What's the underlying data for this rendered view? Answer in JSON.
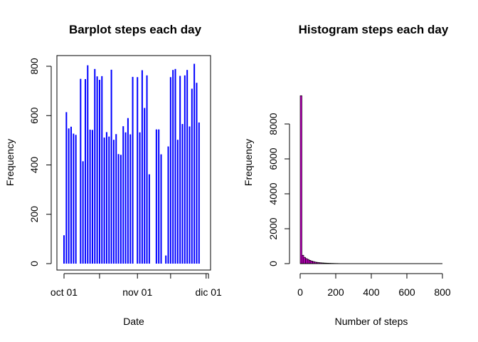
{
  "chart_data": [
    {
      "type": "bar",
      "title": "Barplot steps each day",
      "xlabel": "Date",
      "ylabel": "Frequency",
      "ylim": [
        0,
        860
      ],
      "yticks": [
        0,
        200,
        400,
        600,
        800
      ],
      "xticks": [
        "oct 01",
        "nov 01",
        "dic 01"
      ],
      "bar_color": "#0000ff",
      "x": [
        "2012-10-01",
        "2012-10-02",
        "2012-10-03",
        "2012-10-04",
        "2012-10-05",
        "2012-10-06",
        "2012-10-07",
        "2012-10-08",
        "2012-10-09",
        "2012-10-10",
        "2012-10-11",
        "2012-10-12",
        "2012-10-13",
        "2012-10-14",
        "2012-10-15",
        "2012-10-16",
        "2012-10-17",
        "2012-10-18",
        "2012-10-19",
        "2012-10-20",
        "2012-10-21",
        "2012-10-22",
        "2012-10-23",
        "2012-10-24",
        "2012-10-25",
        "2012-10-26",
        "2012-10-27",
        "2012-10-28",
        "2012-10-29",
        "2012-10-30",
        "2012-10-31",
        "2012-11-01",
        "2012-11-02",
        "2012-11-03",
        "2012-11-04",
        "2012-11-05",
        "2012-11-06",
        "2012-11-07",
        "2012-11-08",
        "2012-11-09",
        "2012-11-10",
        "2012-11-11",
        "2012-11-12",
        "2012-11-13",
        "2012-11-14",
        "2012-11-15",
        "2012-11-16",
        "2012-11-17",
        "2012-11-18",
        "2012-11-19",
        "2012-11-20",
        "2012-11-21",
        "2012-11-22",
        "2012-11-23",
        "2012-11-24",
        "2012-11-25",
        "2012-11-26",
        "2012-11-27",
        "2012-11-28",
        "2012-11-29",
        "2012-11-30"
      ],
      "values": [
        115,
        614,
        548,
        555,
        527,
        522,
        0,
        749,
        415,
        748,
        804,
        543,
        542,
        789,
        759,
        745,
        760,
        511,
        533,
        515,
        786,
        502,
        525,
        444,
        441,
        557,
        532,
        590,
        524,
        757,
        0,
        756,
        532,
        784,
        631,
        763,
        362,
        0,
        0,
        544,
        544,
        443,
        0,
        33,
        475,
        756,
        785,
        789,
        502,
        761,
        566,
        763,
        785,
        556,
        709,
        810,
        733,
        572,
        0,
        0,
        0
      ]
    },
    {
      "type": "bar",
      "title": "Histogram steps each day",
      "xlabel": "Number of steps",
      "ylabel": "Frequency",
      "xlim": [
        0,
        800
      ],
      "ylim": [
        0,
        9700
      ],
      "xticks": [
        0,
        200,
        400,
        600,
        800
      ],
      "yticks": [
        0,
        2000,
        4000,
        6000,
        8000
      ],
      "bar_fill": "#cc00cc",
      "bin_width": 10,
      "values": [
        9620,
        480,
        360,
        290,
        240,
        190,
        150,
        120,
        90,
        75,
        60,
        50,
        42,
        35,
        30,
        26,
        22,
        18,
        15,
        12,
        10,
        8,
        6,
        5,
        4,
        3,
        3,
        2,
        2,
        1,
        1,
        1,
        1
      ]
    }
  ]
}
